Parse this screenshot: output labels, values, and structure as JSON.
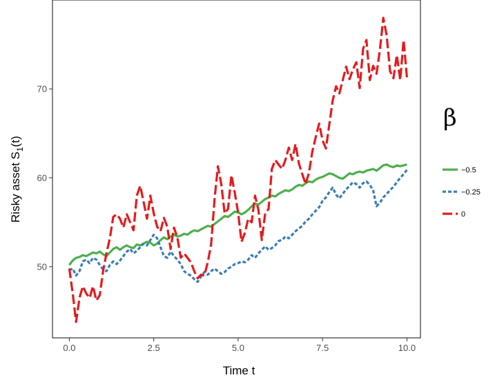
{
  "chart_data": {
    "type": "line",
    "xlabel": "Time t",
    "ylabel": {
      "text": "Risky asset  S",
      "subscript": "1",
      "suffix": "(t)"
    },
    "xlim": [
      -0.5,
      10.4
    ],
    "ylim": [
      42,
      80
    ],
    "xticks": [
      {
        "value": 0,
        "label": "0.0"
      },
      {
        "value": 2.5,
        "label": "2.5"
      },
      {
        "value": 5,
        "label": "5.0"
      },
      {
        "value": 7.5,
        "label": "7.5"
      },
      {
        "value": 10,
        "label": "10.0"
      }
    ],
    "yticks": [
      {
        "value": 50,
        "label": "50"
      },
      {
        "value": 60,
        "label": "60"
      },
      {
        "value": 70,
        "label": "70"
      }
    ],
    "grid": false,
    "legend": {
      "title": "β",
      "placement": "right",
      "entries": [
        "−0.5",
        "−0.25",
        "0"
      ]
    },
    "series": [
      {
        "name": "−0.5",
        "color": "#4daf4a",
        "dash": "solid",
        "x": [
          0,
          0.1,
          0.2,
          0.3,
          0.4,
          0.5,
          0.6,
          0.7,
          0.8,
          0.9,
          1,
          1.1,
          1.2,
          1.3,
          1.4,
          1.5,
          1.6,
          1.7,
          1.8,
          1.9,
          2,
          2.1,
          2.2,
          2.3,
          2.4,
          2.5,
          2.6,
          2.7,
          2.8,
          2.9,
          3,
          3.1,
          3.2,
          3.3,
          3.4,
          3.5,
          3.6,
          3.7,
          3.8,
          3.9,
          4,
          4.1,
          4.2,
          4.3,
          4.4,
          4.5,
          4.6,
          4.7,
          4.8,
          4.9,
          5,
          5.1,
          5.2,
          5.3,
          5.4,
          5.5,
          5.6,
          5.7,
          5.8,
          5.9,
          6,
          6.1,
          6.2,
          6.3,
          6.4,
          6.5,
          6.6,
          6.7,
          6.8,
          6.9,
          7,
          7.1,
          7.2,
          7.3,
          7.4,
          7.5,
          7.6,
          7.7,
          7.8,
          7.9,
          8,
          8.1,
          8.2,
          8.3,
          8.4,
          8.5,
          8.6,
          8.7,
          8.8,
          8.9,
          9,
          9.1,
          9.2,
          9.3,
          9.4,
          9.5,
          9.6,
          9.7,
          9.8,
          9.9,
          10
        ],
        "y": [
          50.2,
          50.7,
          51.0,
          51.1,
          51.3,
          51.2,
          51.4,
          51.6,
          51.5,
          51.7,
          51.4,
          51.2,
          51.6,
          52.0,
          52.2,
          51.9,
          52.2,
          52.4,
          52.2,
          52.1,
          52.5,
          52.4,
          52.6,
          52.8,
          52.7,
          52.4,
          52.6,
          53.0,
          53.3,
          53.1,
          53.4,
          53.6,
          53.4,
          53.5,
          53.7,
          53.6,
          53.9,
          54.1,
          54.0,
          54.2,
          54.4,
          54.6,
          54.5,
          54.8,
          55.1,
          55.4,
          55.7,
          55.6,
          55.9,
          56.2,
          56.1,
          55.9,
          56.1,
          56.4,
          56.8,
          57.1,
          57.0,
          57.3,
          57.6,
          57.8,
          58.0,
          57.9,
          58.2,
          58.4,
          58.6,
          58.5,
          58.7,
          59.0,
          59.2,
          59.1,
          59.4,
          59.6,
          59.5,
          59.8,
          60.0,
          60.1,
          60.3,
          60.5,
          60.4,
          60.2,
          60.0,
          59.9,
          60.2,
          60.5,
          60.4,
          60.6,
          60.7,
          60.6,
          60.8,
          60.9,
          61.0,
          60.8,
          61.1,
          61.4,
          61.5,
          61.3,
          61.2,
          61.4,
          61.3,
          61.4,
          61.5
        ]
      },
      {
        "name": "−0.25",
        "color": "#377eb8",
        "dash": "dashed",
        "x": [
          0,
          0.1,
          0.2,
          0.3,
          0.4,
          0.5,
          0.6,
          0.7,
          0.8,
          0.9,
          1,
          1.1,
          1.2,
          1.3,
          1.4,
          1.5,
          1.6,
          1.7,
          1.8,
          1.9,
          2,
          2.1,
          2.2,
          2.3,
          2.4,
          2.5,
          2.6,
          2.7,
          2.8,
          2.9,
          3,
          3.1,
          3.2,
          3.3,
          3.4,
          3.5,
          3.6,
          3.7,
          3.8,
          3.9,
          4,
          4.1,
          4.2,
          4.3,
          4.4,
          4.5,
          4.6,
          4.7,
          4.8,
          4.9,
          5,
          5.1,
          5.2,
          5.3,
          5.4,
          5.5,
          5.6,
          5.7,
          5.8,
          5.9,
          6,
          6.1,
          6.2,
          6.3,
          6.4,
          6.5,
          6.6,
          6.7,
          6.8,
          6.9,
          7,
          7.1,
          7.2,
          7.3,
          7.4,
          7.5,
          7.6,
          7.7,
          7.8,
          7.9,
          8,
          8.1,
          8.2,
          8.3,
          8.4,
          8.5,
          8.6,
          8.7,
          8.8,
          8.9,
          9,
          9.1,
          9.2,
          9.3,
          9.4,
          9.5,
          9.6,
          9.7,
          9.8,
          9.9,
          10
        ],
        "y": [
          49.6,
          49.8,
          49.0,
          49.5,
          50.6,
          50.8,
          50.4,
          51.0,
          50.8,
          50.2,
          49.7,
          49.5,
          50.2,
          50.6,
          50.3,
          50.7,
          51.2,
          51.7,
          52.0,
          51.5,
          51.8,
          52.2,
          52.6,
          52.4,
          53.0,
          53.6,
          53.2,
          52.2,
          51.2,
          51.0,
          51.7,
          51.2,
          50.8,
          50.3,
          49.5,
          49.2,
          49.0,
          48.6,
          48.3,
          48.9,
          49.4,
          49.1,
          49.5,
          49.8,
          49.5,
          49.2,
          49.4,
          49.8,
          50.0,
          50.3,
          50.4,
          50.6,
          50.5,
          50.8,
          51.3,
          51.0,
          51.5,
          51.9,
          52.3,
          51.9,
          52.1,
          52.4,
          52.9,
          53.0,
          53.4,
          53.2,
          53.6,
          54.0,
          54.3,
          54.6,
          55.1,
          55.4,
          55.9,
          56.3,
          56.7,
          57.4,
          57.8,
          58.4,
          58.9,
          58.1,
          57.7,
          58.2,
          58.7,
          59.1,
          59.5,
          59.3,
          58.9,
          59.4,
          59.6,
          59.2,
          58.6,
          56.8,
          57.2,
          57.8,
          58.2,
          58.6,
          59.0,
          59.5,
          60.0,
          60.4,
          60.9
        ]
      },
      {
        "name": "0",
        "color": "#e41a1c",
        "dash": "longdash",
        "x": [
          0,
          0.1,
          0.2,
          0.3,
          0.4,
          0.5,
          0.6,
          0.7,
          0.8,
          0.9,
          1,
          1.1,
          1.2,
          1.3,
          1.4,
          1.5,
          1.6,
          1.7,
          1.8,
          1.9,
          2,
          2.1,
          2.2,
          2.3,
          2.4,
          2.5,
          2.6,
          2.7,
          2.8,
          2.9,
          3,
          3.1,
          3.2,
          3.3,
          3.4,
          3.5,
          3.6,
          3.7,
          3.8,
          3.9,
          4,
          4.1,
          4.2,
          4.3,
          4.4,
          4.5,
          4.6,
          4.7,
          4.8,
          4.9,
          5,
          5.1,
          5.2,
          5.3,
          5.4,
          5.5,
          5.6,
          5.7,
          5.8,
          5.9,
          6,
          6.1,
          6.2,
          6.3,
          6.4,
          6.5,
          6.6,
          6.7,
          6.8,
          6.9,
          7,
          7.1,
          7.2,
          7.3,
          7.4,
          7.5,
          7.6,
          7.7,
          7.8,
          7.9,
          8,
          8.1,
          8.2,
          8.3,
          8.4,
          8.5,
          8.6,
          8.7,
          8.8,
          8.9,
          9,
          9.1,
          9.2,
          9.3,
          9.4,
          9.5,
          9.6,
          9.7,
          9.8,
          9.9,
          10
        ],
        "y": [
          49.8,
          47.0,
          43.8,
          46.5,
          47.8,
          47.0,
          46.5,
          47.8,
          46.2,
          46.8,
          49.5,
          51.5,
          53.2,
          55.6,
          55.9,
          55.4,
          54.4,
          55.9,
          55.0,
          54.1,
          58.0,
          59.1,
          57.3,
          55.4,
          58.0,
          56.0,
          54.5,
          54.0,
          55.5,
          54.5,
          52.0,
          54.4,
          53.3,
          51.0,
          51.5,
          51.0,
          50.5,
          49.5,
          48.7,
          49.1,
          49.0,
          50.5,
          52.5,
          57.5,
          61.3,
          59.3,
          56.0,
          56.5,
          60.3,
          58.3,
          56.1,
          52.8,
          53.8,
          55.4,
          55.0,
          58.0,
          56.4,
          53.0,
          56.0,
          56.5,
          61.0,
          62.0,
          61.5,
          61.0,
          62.0,
          63.4,
          62.0,
          63.8,
          61.6,
          60.4,
          59.3,
          60.6,
          63.0,
          64.6,
          66.1,
          64.2,
          63.3,
          66.0,
          68.7,
          70.3,
          69.5,
          71.0,
          72.5,
          71.1,
          72.2,
          73.0,
          70.1,
          74.5,
          75.5,
          71.0,
          72.6,
          71.7,
          74.4,
          78.0,
          76.0,
          72.0,
          71.2,
          73.8,
          71.0,
          75.5,
          71.3
        ]
      }
    ]
  }
}
